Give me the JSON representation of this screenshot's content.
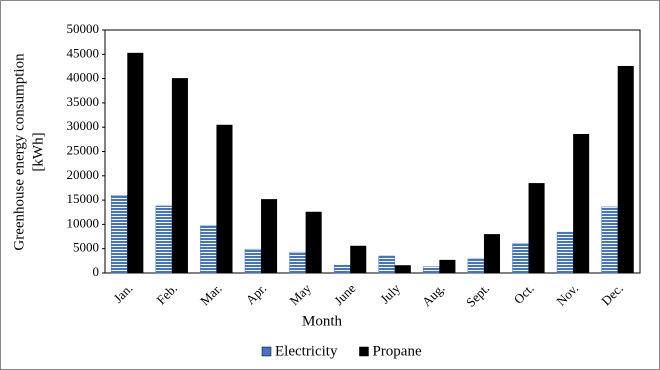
{
  "chart_data": {
    "type": "bar",
    "x_label": "Month",
    "y_label": [
      "Greenhouse energy consumption",
      "[kWh]"
    ],
    "categories": [
      "Jan.",
      "Feb.",
      "Mar.",
      "Apr.",
      "May",
      "June",
      "July",
      "Aug.",
      "Sept.",
      "Oct.",
      "Nov.",
      "Dec."
    ],
    "series": [
      {
        "name": "Electricity",
        "color": "#4472c4",
        "values": [
          16000,
          13800,
          9700,
          4900,
          4300,
          1600,
          3500,
          1300,
          2900,
          6000,
          8400,
          13600
        ]
      },
      {
        "name": "Propane",
        "color": "#000000",
        "values": [
          45300,
          40100,
          30500,
          15200,
          12600,
          5600,
          1600,
          2700,
          8000,
          18500,
          28600,
          42600
        ]
      }
    ],
    "ylim": [
      0,
      50000
    ],
    "yticks": [
      0,
      5000,
      10000,
      15000,
      20000,
      25000,
      30000,
      35000,
      40000,
      45000,
      50000
    ],
    "legend": "bottom",
    "grid": false
  }
}
